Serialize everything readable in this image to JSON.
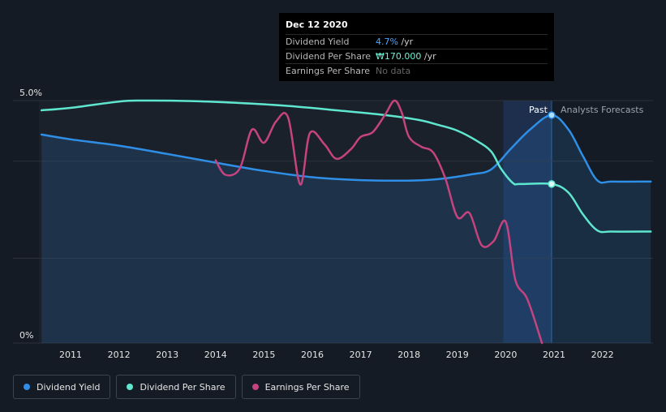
{
  "chart_data": {
    "type": "line",
    "x_range": [
      2010.4,
      2023.0
    ],
    "y_range_pct": [
      0,
      5.0
    ],
    "y_tick_labels": [
      "5.0%",
      "0%"
    ],
    "x_ticks": [
      2011,
      2012,
      2013,
      2014,
      2015,
      2016,
      2017,
      2018,
      2019,
      2020,
      2021,
      2022
    ],
    "past_until": 2020.95,
    "highlight_from": 2019.95,
    "region_labels": {
      "past": "Past",
      "forecast": "Analysts Forecasts"
    },
    "series": [
      {
        "name": "Dividend Yield",
        "color": "#2f8fe6",
        "unit": "%",
        "points": [
          [
            2010.4,
            4.3
          ],
          [
            2011.0,
            4.2
          ],
          [
            2012.0,
            4.07
          ],
          [
            2013.0,
            3.9
          ],
          [
            2014.0,
            3.72
          ],
          [
            2015.0,
            3.55
          ],
          [
            2016.0,
            3.42
          ],
          [
            2017.0,
            3.36
          ],
          [
            2018.0,
            3.35
          ],
          [
            2018.6,
            3.38
          ],
          [
            2019.3,
            3.48
          ],
          [
            2019.7,
            3.58
          ],
          [
            2020.1,
            4.0
          ],
          [
            2020.5,
            4.4
          ],
          [
            2020.95,
            4.7
          ],
          [
            2021.3,
            4.4
          ],
          [
            2021.6,
            3.85
          ],
          [
            2021.9,
            3.35
          ],
          [
            2022.2,
            3.33
          ],
          [
            2023.0,
            3.33
          ]
        ]
      },
      {
        "name": "Dividend Per Share",
        "color": "#5fe6cf",
        "unit": "relative",
        "points": [
          [
            2010.4,
            4.8
          ],
          [
            2011.0,
            4.85
          ],
          [
            2012.0,
            4.98
          ],
          [
            2012.5,
            5.0
          ],
          [
            2013.5,
            4.99
          ],
          [
            2014.5,
            4.95
          ],
          [
            2015.5,
            4.89
          ],
          [
            2016.5,
            4.8
          ],
          [
            2017.5,
            4.7
          ],
          [
            2018.2,
            4.6
          ],
          [
            2018.6,
            4.5
          ],
          [
            2019.0,
            4.38
          ],
          [
            2019.4,
            4.17
          ],
          [
            2019.7,
            3.95
          ],
          [
            2019.9,
            3.6
          ],
          [
            2020.15,
            3.3
          ],
          [
            2020.3,
            3.28
          ],
          [
            2020.95,
            3.28
          ],
          [
            2021.3,
            3.1
          ],
          [
            2021.6,
            2.65
          ],
          [
            2021.9,
            2.32
          ],
          [
            2022.2,
            2.3
          ],
          [
            2023.0,
            2.3
          ]
        ]
      },
      {
        "name": "Earnings Per Share",
        "color": "#c5437e",
        "unit": "relative",
        "points": [
          [
            2014.0,
            3.77
          ],
          [
            2014.2,
            3.47
          ],
          [
            2014.5,
            3.6
          ],
          [
            2014.75,
            4.4
          ],
          [
            2015.0,
            4.13
          ],
          [
            2015.25,
            4.57
          ],
          [
            2015.5,
            4.65
          ],
          [
            2015.75,
            3.27
          ],
          [
            2015.95,
            4.33
          ],
          [
            2016.25,
            4.1
          ],
          [
            2016.5,
            3.8
          ],
          [
            2016.8,
            4.0
          ],
          [
            2017.0,
            4.25
          ],
          [
            2017.25,
            4.35
          ],
          [
            2017.5,
            4.7
          ],
          [
            2017.7,
            5.0
          ],
          [
            2017.85,
            4.75
          ],
          [
            2018.0,
            4.25
          ],
          [
            2018.25,
            4.05
          ],
          [
            2018.5,
            3.93
          ],
          [
            2018.75,
            3.4
          ],
          [
            2019.0,
            2.6
          ],
          [
            2019.25,
            2.68
          ],
          [
            2019.5,
            2.02
          ],
          [
            2019.75,
            2.1
          ],
          [
            2020.0,
            2.5
          ],
          [
            2020.2,
            1.3
          ],
          [
            2020.45,
            0.9
          ],
          [
            2020.75,
            0.0
          ]
        ]
      }
    ]
  },
  "tooltip": {
    "date": "Dec 12 2020",
    "rows": [
      {
        "name": "Dividend Yield",
        "value": "4.7%",
        "unit": " /yr"
      },
      {
        "name": "Dividend Per Share",
        "value": "₩170.000",
        "unit": " /yr"
      },
      {
        "name": "Earnings Per Share",
        "value": "No data",
        "unit": ""
      }
    ]
  },
  "legend": [
    {
      "label": "Dividend Yield",
      "color": "#2f8fe6"
    },
    {
      "label": "Dividend Per Share",
      "color": "#5fe6cf"
    },
    {
      "label": "Earnings Per Share",
      "color": "#c5437e"
    }
  ]
}
